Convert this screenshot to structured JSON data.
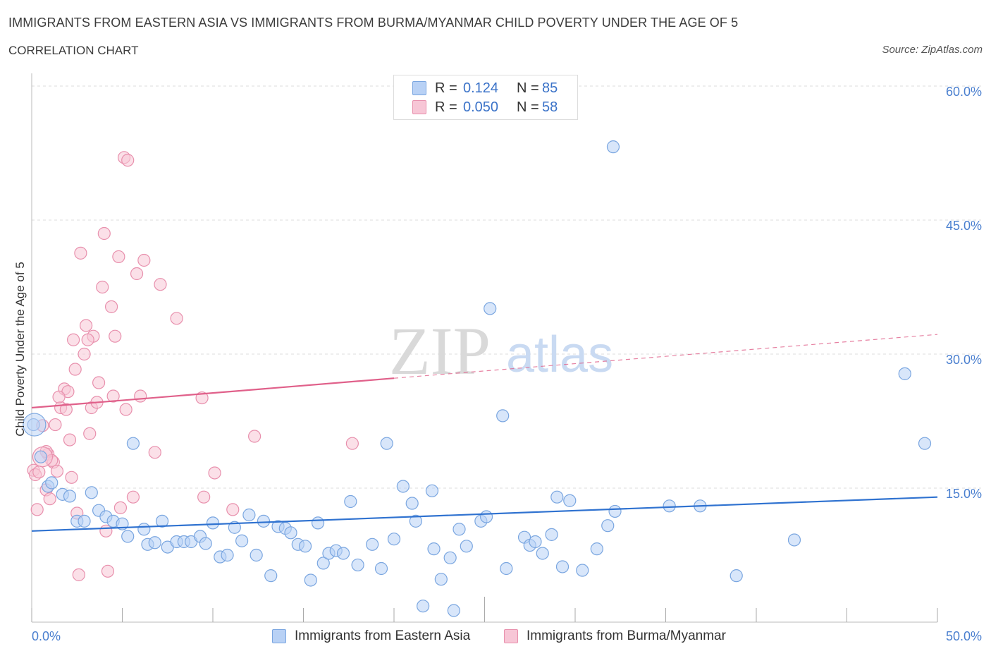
{
  "title": "IMMIGRANTS FROM EASTERN ASIA VS IMMIGRANTS FROM BURMA/MYANMAR CHILD POVERTY UNDER THE AGE OF 5",
  "subtitle": "CORRELATION CHART",
  "source": "Source: ZipAtlas.com",
  "watermark": {
    "zip": "ZIP",
    "atlas": "atlas"
  },
  "colors": {
    "blue_fill": "#b8d1f5",
    "blue_stroke": "#7aa6e0",
    "blue_line": "#2f72d0",
    "pink_fill": "#f7c6d6",
    "pink_stroke": "#e890ad",
    "pink_line": "#e0608a"
  },
  "legend": {
    "rows": [
      {
        "r_label": "R =",
        "r_value": "0.124",
        "n_label": "N =",
        "n_value": "85"
      },
      {
        "r_label": "R =",
        "r_value": "0.050",
        "n_label": "N =",
        "n_value": "58"
      }
    ]
  },
  "bottom_legend": [
    "Immigrants from Eastern Asia",
    "Immigrants from Burma/Myanmar"
  ],
  "chart_data": {
    "type": "scatter",
    "title": "IMMIGRANTS FROM EASTERN ASIA VS IMMIGRANTS FROM BURMA/MYANMAR CHILD POVERTY UNDER THE AGE OF 5",
    "ylabel": "Child Poverty Under the Age of 5",
    "xlabel": "",
    "xlim": [
      0,
      50
    ],
    "ylim": [
      0,
      60
    ],
    "x_tick_labels": [
      "0.0%",
      "50.0%"
    ],
    "y_ticks": [
      15,
      30,
      45,
      60
    ],
    "y_tick_labels": [
      "15.0%",
      "30.0%",
      "45.0%",
      "60.0%"
    ],
    "grid": "horizontal dashed",
    "legend_placement": "top-center",
    "series": [
      {
        "name": "Immigrants from Eastern Asia",
        "R": 0.124,
        "N": 85,
        "trend": {
          "x": [
            0,
            50
          ],
          "y": [
            10.2,
            14.0
          ],
          "style": "solid"
        },
        "points": [
          [
            0.1,
            22.1
          ],
          [
            0.5,
            18.5
          ],
          [
            0.9,
            15.2
          ],
          [
            1.1,
            15.6
          ],
          [
            1.7,
            14.3
          ],
          [
            2.1,
            14.1
          ],
          [
            2.5,
            11.3
          ],
          [
            2.9,
            11.3
          ],
          [
            3.3,
            14.5
          ],
          [
            3.7,
            12.5
          ],
          [
            4.1,
            11.8
          ],
          [
            4.5,
            11.3
          ],
          [
            5.0,
            11.0
          ],
          [
            5.3,
            9.6
          ],
          [
            5.6,
            20.0
          ],
          [
            6.2,
            10.4
          ],
          [
            6.4,
            8.7
          ],
          [
            6.8,
            8.9
          ],
          [
            7.2,
            11.3
          ],
          [
            7.5,
            8.4
          ],
          [
            8.0,
            9.0
          ],
          [
            8.4,
            9.0
          ],
          [
            8.8,
            9.0
          ],
          [
            9.3,
            9.6
          ],
          [
            9.6,
            8.8
          ],
          [
            10.0,
            11.1
          ],
          [
            10.4,
            7.3
          ],
          [
            10.8,
            7.5
          ],
          [
            11.2,
            10.6
          ],
          [
            11.6,
            9.1
          ],
          [
            12.0,
            12.0
          ],
          [
            12.4,
            7.5
          ],
          [
            12.8,
            11.3
          ],
          [
            13.2,
            5.2
          ],
          [
            13.6,
            10.7
          ],
          [
            14.0,
            10.5
          ],
          [
            14.3,
            10.0
          ],
          [
            14.7,
            8.7
          ],
          [
            15.1,
            8.5
          ],
          [
            15.4,
            4.7
          ],
          [
            15.8,
            11.1
          ],
          [
            16.1,
            6.6
          ],
          [
            16.4,
            7.7
          ],
          [
            16.8,
            8.0
          ],
          [
            17.2,
            7.7
          ],
          [
            17.6,
            13.5
          ],
          [
            18.0,
            6.4
          ],
          [
            18.8,
            8.7
          ],
          [
            19.3,
            6.0
          ],
          [
            19.6,
            20.0
          ],
          [
            20.0,
            9.3
          ],
          [
            20.5,
            15.2
          ],
          [
            21.0,
            13.3
          ],
          [
            21.2,
            11.3
          ],
          [
            21.6,
            1.8
          ],
          [
            22.1,
            14.7
          ],
          [
            22.2,
            8.2
          ],
          [
            22.6,
            4.8
          ],
          [
            23.1,
            7.2
          ],
          [
            23.3,
            1.3
          ],
          [
            23.6,
            10.4
          ],
          [
            24.0,
            8.5
          ],
          [
            24.8,
            11.3
          ],
          [
            25.1,
            11.8
          ],
          [
            25.3,
            35.1
          ],
          [
            26.0,
            23.1
          ],
          [
            26.2,
            6.0
          ],
          [
            27.2,
            9.5
          ],
          [
            27.5,
            8.6
          ],
          [
            27.8,
            9.0
          ],
          [
            28.2,
            7.7
          ],
          [
            28.7,
            9.8
          ],
          [
            29.0,
            14.0
          ],
          [
            29.3,
            6.2
          ],
          [
            29.7,
            13.6
          ],
          [
            30.4,
            5.8
          ],
          [
            31.2,
            8.2
          ],
          [
            31.8,
            10.8
          ],
          [
            32.2,
            12.4
          ],
          [
            35.2,
            13.0
          ],
          [
            32.1,
            53.2
          ],
          [
            36.9,
            13.0
          ],
          [
            38.9,
            5.2
          ],
          [
            42.1,
            9.2
          ],
          [
            48.2,
            27.8
          ],
          [
            49.3,
            20.0
          ]
        ]
      },
      {
        "name": "Immigrants from Burma/Myanmar",
        "R": 0.05,
        "N": 58,
        "trend": {
          "x": [
            0,
            20
          ],
          "y": [
            24.0,
            27.3
          ],
          "style": "solid",
          "dashed_x": [
            20,
            50
          ],
          "dashed_y": [
            27.3,
            32.2
          ]
        },
        "points": [
          [
            0.1,
            17.0
          ],
          [
            0.2,
            16.5
          ],
          [
            0.3,
            12.6
          ],
          [
            0.4,
            16.8
          ],
          [
            0.6,
            22.0
          ],
          [
            0.8,
            14.8
          ],
          [
            0.9,
            18.8
          ],
          [
            1.0,
            13.8
          ],
          [
            1.2,
            17.9
          ],
          [
            1.3,
            22.1
          ],
          [
            1.4,
            16.9
          ],
          [
            1.6,
            24.0
          ],
          [
            1.8,
            26.1
          ],
          [
            1.9,
            23.8
          ],
          [
            2.0,
            25.8
          ],
          [
            2.1,
            20.4
          ],
          [
            2.2,
            16.2
          ],
          [
            2.4,
            28.3
          ],
          [
            2.5,
            12.2
          ],
          [
            2.6,
            5.3
          ],
          [
            2.7,
            41.3
          ],
          [
            2.9,
            30.0
          ],
          [
            3.0,
            33.2
          ],
          [
            3.2,
            21.1
          ],
          [
            3.3,
            24.0
          ],
          [
            3.4,
            32.0
          ],
          [
            3.6,
            24.6
          ],
          [
            3.7,
            26.8
          ],
          [
            3.9,
            37.5
          ],
          [
            4.0,
            43.5
          ],
          [
            4.1,
            10.2
          ],
          [
            4.2,
            5.7
          ],
          [
            4.4,
            35.3
          ],
          [
            4.5,
            25.3
          ],
          [
            4.6,
            32.0
          ],
          [
            4.8,
            40.9
          ],
          [
            4.9,
            12.8
          ],
          [
            5.1,
            52.0
          ],
          [
            5.2,
            23.8
          ],
          [
            5.3,
            51.7
          ],
          [
            5.6,
            14.0
          ],
          [
            5.8,
            39.0
          ],
          [
            6.0,
            25.3
          ],
          [
            6.2,
            40.5
          ],
          [
            6.8,
            19.0
          ],
          [
            7.1,
            37.8
          ],
          [
            8.0,
            34.0
          ],
          [
            9.4,
            25.1
          ],
          [
            9.5,
            14.0
          ],
          [
            10.1,
            16.7
          ],
          [
            11.1,
            12.6
          ],
          [
            12.3,
            20.8
          ],
          [
            17.7,
            20.0
          ],
          [
            2.3,
            31.6
          ],
          [
            3.1,
            31.6
          ],
          [
            1.5,
            25.2
          ],
          [
            0.8,
            19.1
          ],
          [
            1.1,
            18.1
          ]
        ]
      }
    ]
  }
}
